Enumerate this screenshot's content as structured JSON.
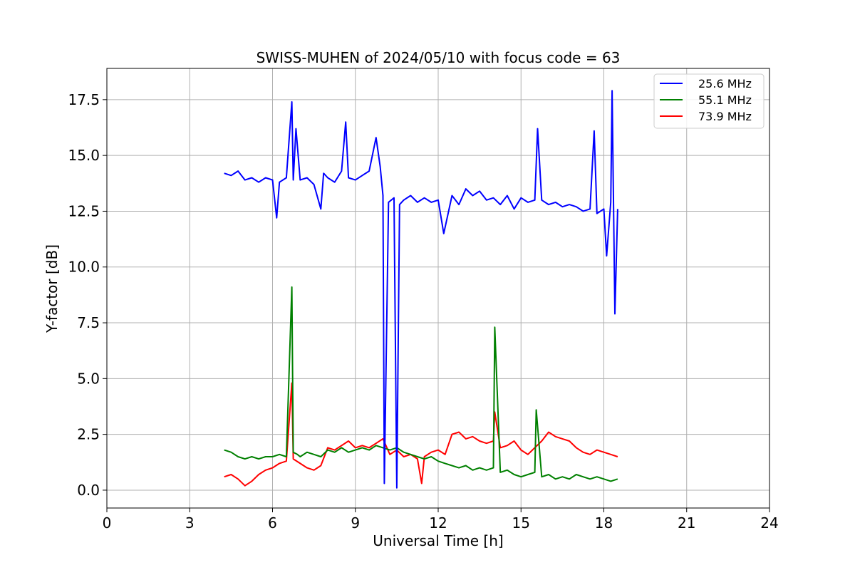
{
  "chart_data": {
    "type": "line",
    "title": "SWISS-MUHEN of 2024/05/10 with focus code = 63",
    "xlabel": "Universal Time [h]",
    "ylabel": "Y-factor [dB]",
    "xlim": [
      0,
      24
    ],
    "ylim": [
      -0.8,
      18.9
    ],
    "xticks": [
      0,
      3,
      6,
      9,
      12,
      15,
      18,
      21,
      24
    ],
    "xtick_labels": [
      "0",
      "3",
      "6",
      "9",
      "12",
      "15",
      "18",
      "21",
      "24"
    ],
    "yticks": [
      0,
      2.5,
      5,
      7.5,
      10,
      12.5,
      15,
      17.5
    ],
    "ytick_labels": [
      "0.0",
      "2.5",
      "5.0",
      "7.5",
      "10.0",
      "12.5",
      "15.0",
      "17.5"
    ],
    "grid": true,
    "legend_position": "top-right",
    "series": [
      {
        "name": "25.6 MHz",
        "color": "#0000ff",
        "x": [
          4.25,
          4.5,
          4.75,
          5.0,
          5.25,
          5.5,
          5.75,
          6.0,
          6.15,
          6.25,
          6.5,
          6.7,
          6.75,
          6.85,
          7.0,
          7.25,
          7.5,
          7.75,
          7.85,
          8.0,
          8.25,
          8.5,
          8.65,
          8.75,
          9.0,
          9.25,
          9.5,
          9.75,
          9.9,
          10.0,
          10.05,
          10.2,
          10.4,
          10.5,
          10.6,
          10.75,
          11.0,
          11.25,
          11.5,
          11.75,
          12.0,
          12.2,
          12.5,
          12.75,
          13.0,
          13.25,
          13.5,
          13.75,
          14.0,
          14.25,
          14.5,
          14.75,
          15.0,
          15.25,
          15.5,
          15.6,
          15.75,
          16.0,
          16.25,
          16.5,
          16.75,
          17.0,
          17.25,
          17.5,
          17.65,
          17.75,
          18.0,
          18.1,
          18.25,
          18.3,
          18.4,
          18.5
        ],
        "y": [
          14.2,
          14.1,
          14.3,
          13.9,
          14.0,
          13.8,
          14.0,
          13.9,
          12.2,
          13.8,
          14.0,
          17.4,
          13.9,
          16.2,
          13.9,
          14.0,
          13.7,
          12.6,
          14.2,
          14.0,
          13.8,
          14.3,
          16.5,
          14.0,
          13.9,
          14.1,
          14.3,
          15.8,
          14.5,
          13.2,
          0.3,
          12.9,
          13.1,
          0.1,
          12.8,
          13.0,
          13.2,
          12.9,
          13.1,
          12.9,
          13.0,
          11.5,
          13.2,
          12.8,
          13.5,
          13.2,
          13.4,
          13.0,
          13.1,
          12.8,
          13.2,
          12.6,
          13.1,
          12.9,
          13.0,
          16.2,
          13.0,
          12.8,
          12.9,
          12.7,
          12.8,
          12.7,
          12.5,
          12.6,
          16.1,
          12.4,
          12.6,
          10.5,
          12.9,
          17.9,
          7.9,
          12.6
        ]
      },
      {
        "name": "55.1 MHz",
        "color": "#008000",
        "x": [
          4.25,
          4.5,
          4.75,
          5.0,
          5.25,
          5.5,
          5.75,
          6.0,
          6.25,
          6.5,
          6.7,
          6.75,
          6.9,
          7.0,
          7.25,
          7.5,
          7.75,
          8.0,
          8.25,
          8.5,
          8.75,
          9.0,
          9.25,
          9.5,
          9.75,
          10.0,
          10.25,
          10.5,
          10.75,
          11.0,
          11.25,
          11.5,
          11.75,
          12.0,
          12.25,
          12.5,
          12.75,
          13.0,
          13.25,
          13.5,
          13.75,
          14.0,
          14.05,
          14.25,
          14.5,
          14.75,
          15.0,
          15.25,
          15.5,
          15.55,
          15.75,
          16.0,
          16.25,
          16.5,
          16.75,
          17.0,
          17.25,
          17.5,
          17.75,
          18.0,
          18.25,
          18.5
        ],
        "y": [
          1.8,
          1.7,
          1.5,
          1.4,
          1.5,
          1.4,
          1.5,
          1.5,
          1.6,
          1.5,
          9.1,
          1.7,
          1.6,
          1.5,
          1.7,
          1.6,
          1.5,
          1.8,
          1.7,
          1.9,
          1.7,
          1.8,
          1.9,
          1.8,
          2.0,
          1.9,
          1.8,
          1.9,
          1.7,
          1.6,
          1.5,
          1.4,
          1.5,
          1.3,
          1.2,
          1.1,
          1.0,
          1.1,
          0.9,
          1.0,
          0.9,
          1.0,
          7.3,
          0.8,
          0.9,
          0.7,
          0.6,
          0.7,
          0.8,
          3.6,
          0.6,
          0.7,
          0.5,
          0.6,
          0.5,
          0.7,
          0.6,
          0.5,
          0.6,
          0.5,
          0.4,
          0.5
        ]
      },
      {
        "name": "73.9 MHz",
        "color": "#ff0000",
        "x": [
          4.25,
          4.5,
          4.75,
          5.0,
          5.25,
          5.5,
          5.75,
          6.0,
          6.25,
          6.5,
          6.7,
          6.75,
          7.0,
          7.25,
          7.5,
          7.75,
          8.0,
          8.25,
          8.5,
          8.75,
          9.0,
          9.25,
          9.5,
          9.75,
          10.0,
          10.25,
          10.5,
          10.75,
          11.0,
          11.25,
          11.4,
          11.5,
          11.75,
          12.0,
          12.25,
          12.5,
          12.75,
          13.0,
          13.25,
          13.5,
          13.75,
          14.0,
          14.05,
          14.25,
          14.5,
          14.75,
          15.0,
          15.25,
          15.5,
          15.75,
          16.0,
          16.25,
          16.5,
          16.75,
          17.0,
          17.25,
          17.5,
          17.75,
          18.0,
          18.25,
          18.5
        ],
        "y": [
          0.6,
          0.7,
          0.5,
          0.2,
          0.4,
          0.7,
          0.9,
          1.0,
          1.2,
          1.3,
          4.8,
          1.4,
          1.2,
          1.0,
          0.9,
          1.1,
          1.9,
          1.8,
          2.0,
          2.2,
          1.9,
          2.0,
          1.9,
          2.1,
          2.3,
          1.6,
          1.8,
          1.5,
          1.6,
          1.4,
          0.3,
          1.5,
          1.7,
          1.8,
          1.6,
          2.5,
          2.6,
          2.3,
          2.4,
          2.2,
          2.1,
          2.2,
          3.5,
          1.9,
          2.0,
          2.2,
          1.8,
          1.6,
          1.9,
          2.2,
          2.6,
          2.4,
          2.3,
          2.2,
          1.9,
          1.7,
          1.6,
          1.8,
          1.7,
          1.6,
          1.5
        ]
      }
    ]
  }
}
